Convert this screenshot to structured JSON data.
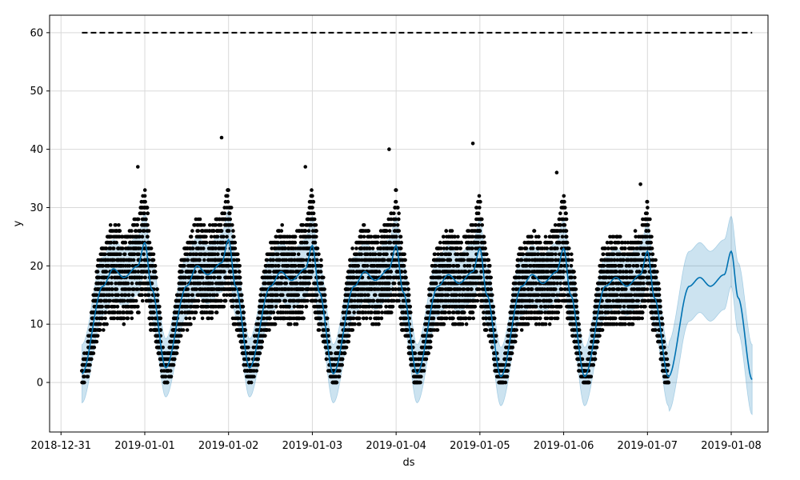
{
  "chart_data": {
    "type": "line",
    "title": "",
    "xlabel": "ds",
    "ylabel": "y",
    "x_ticks": [
      "2018-12-31",
      "2019-01-01",
      "2019-01-02",
      "2019-01-03",
      "2019-01-04",
      "2019-01-05",
      "2019-01-06",
      "2019-01-07",
      "2019-01-08"
    ],
    "y_ticks": [
      "0",
      "10",
      "20",
      "30",
      "40",
      "50",
      "60"
    ],
    "xlim": [
      "2018-12-30T20:44",
      "2019-01-08T10:32"
    ],
    "ylim": [
      -8.5,
      63
    ],
    "grid": true,
    "colors": {
      "observed": "#000000",
      "forecast": "#0072b2",
      "interval": "#0072b2",
      "cap": "#000000",
      "grid": "#d9d9d9"
    },
    "observed_range": [
      "2018-12-31T06:00",
      "2019-01-07T06:00"
    ],
    "forecast_range": [
      "2018-12-31T06:00",
      "2019-01-08T06:00"
    ],
    "cap": {
      "value": 60,
      "style": "dashed"
    },
    "forecast_peaks": [
      {
        "ds": "2019-01-01T00:00",
        "yhat": 24
      },
      {
        "ds": "2019-01-02T00:00",
        "yhat": 24.5
      },
      {
        "ds": "2019-01-03T00:00",
        "yhat": 23.5
      },
      {
        "ds": "2019-01-04T00:00",
        "yhat": 23.5
      },
      {
        "ds": "2019-01-05T00:00",
        "yhat": 23
      },
      {
        "ds": "2019-01-06T00:00",
        "yhat": 23
      },
      {
        "ds": "2019-01-07T00:00",
        "yhat": 22.5
      },
      {
        "ds": "2019-01-08T00:00",
        "yhat": 22.5
      }
    ],
    "forecast_troughs": [
      {
        "ds": "2018-12-31T06:00",
        "yhat": 1.5
      },
      {
        "ds": "2019-01-01T06:00",
        "yhat": 2.5
      },
      {
        "ds": "2019-01-02T06:00",
        "yhat": 2.5
      },
      {
        "ds": "2019-01-03T06:00",
        "yhat": 1.5
      },
      {
        "ds": "2019-01-04T06:00",
        "yhat": 1.5
      },
      {
        "ds": "2019-01-05T06:00",
        "yhat": 1.0
      },
      {
        "ds": "2019-01-06T06:00",
        "yhat": 1.0
      },
      {
        "ds": "2019-01-07T06:00",
        "yhat": 1.0
      },
      {
        "ds": "2019-01-08T06:00",
        "yhat": 0.5
      }
    ],
    "interval_halfwidth": 5,
    "observed_max": [
      {
        "ds": "2019-01-01T00:00",
        "y": 37
      },
      {
        "ds": "2019-01-02T00:00",
        "y": 42
      },
      {
        "ds": "2019-01-03T00:00",
        "y": 37
      },
      {
        "ds": "2019-01-04T00:00",
        "y": 40
      },
      {
        "ds": "2019-01-05T00:00",
        "y": 41
      },
      {
        "ds": "2019-01-06T00:00",
        "y": 36
      },
      {
        "ds": "2019-01-07T00:00",
        "y": 34
      }
    ]
  }
}
